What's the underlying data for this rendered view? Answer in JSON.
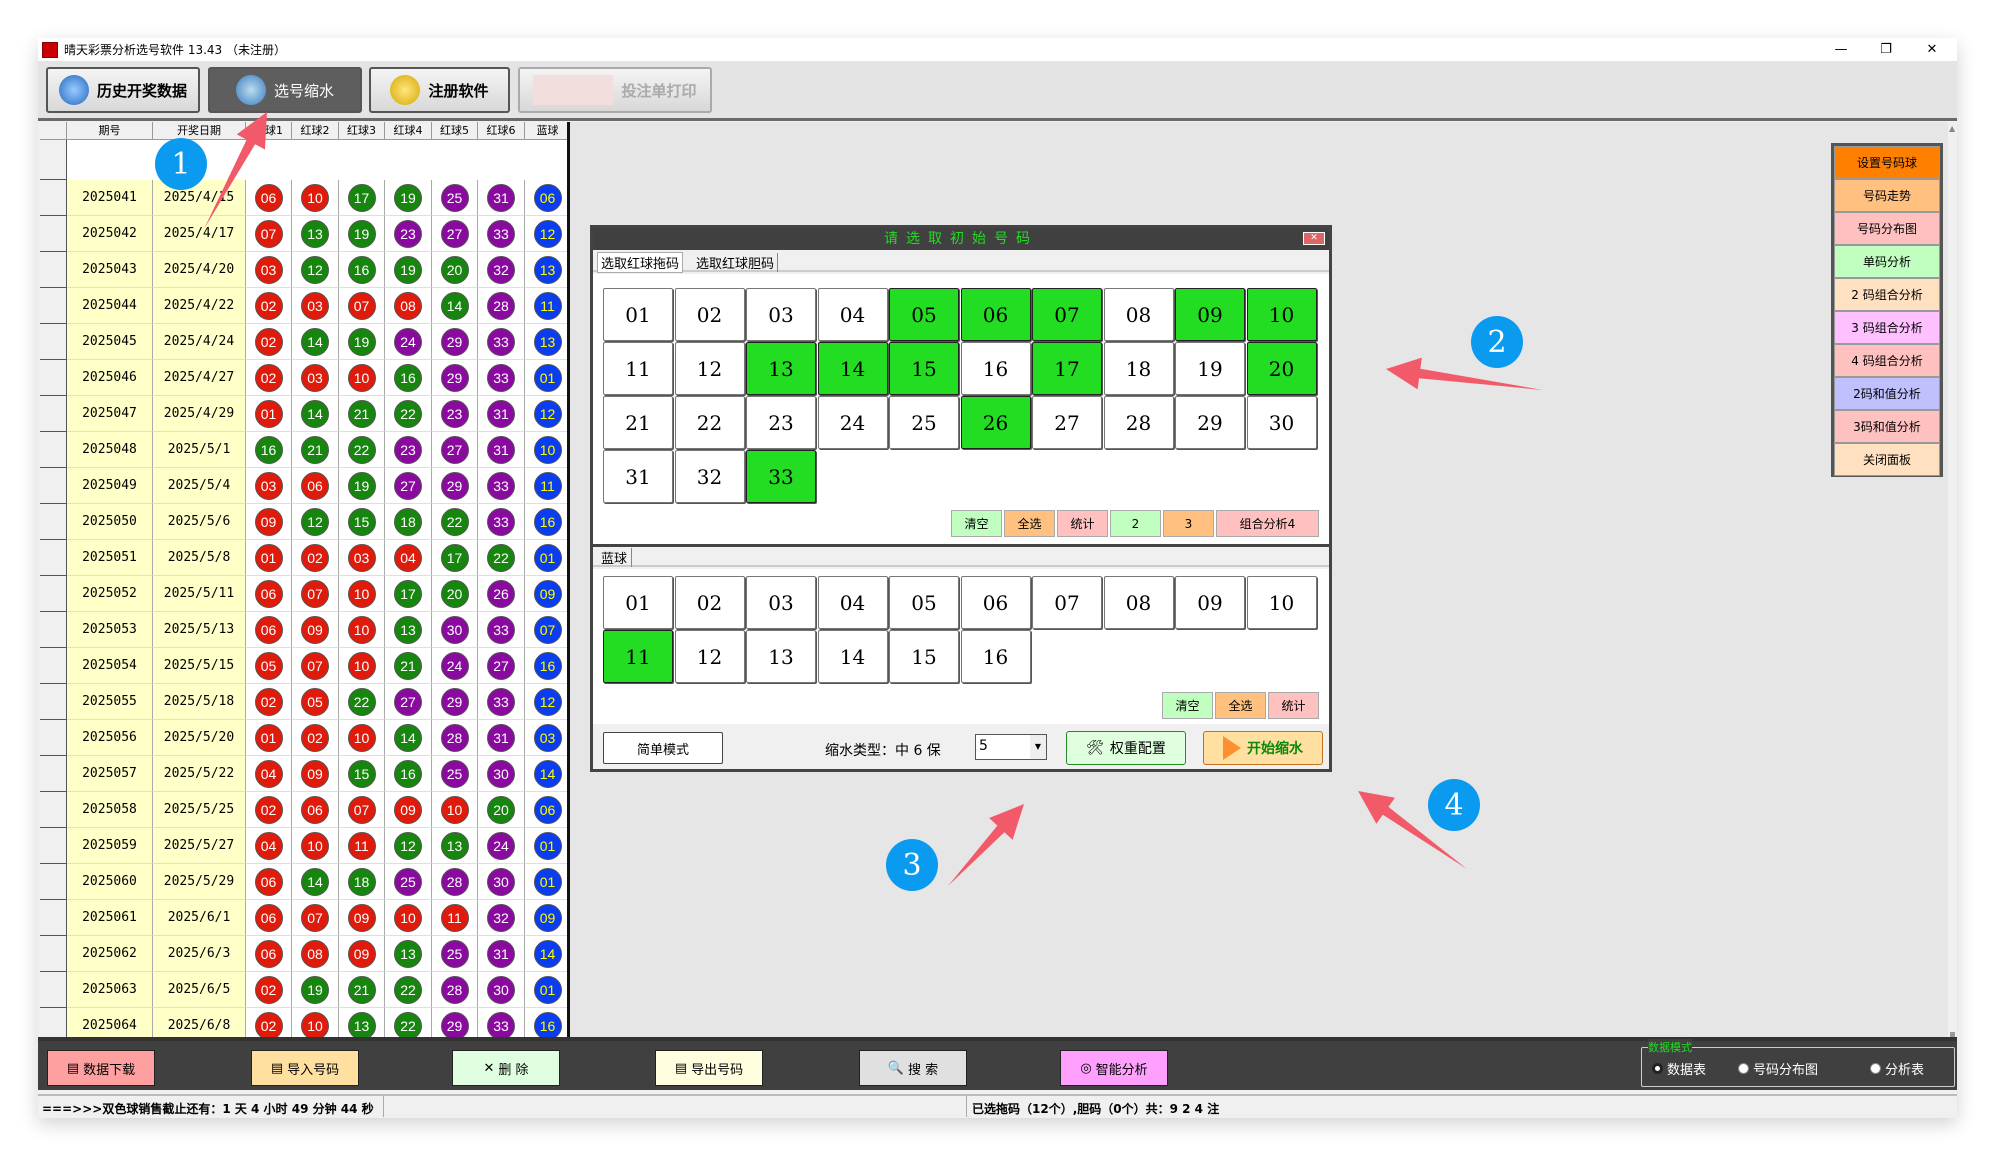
{
  "window": {
    "title": "晴天彩票分析选号软件 13.43 （未注册）",
    "controls": [
      "—",
      "❐",
      "✕"
    ]
  },
  "toolbar": [
    {
      "label": "历史开奖数据",
      "state": "normal",
      "icon": "globe-document-icon"
    },
    {
      "label": "选号缩水",
      "state": "active",
      "icon": "arrow-right-icon"
    },
    {
      "label": "注册软件",
      "state": "normal",
      "icon": "key-icon"
    },
    {
      "label": "投注单打印",
      "state": "disabled",
      "icon": "ticket-icon"
    }
  ],
  "table": {
    "headers": [
      "期号",
      "开奖日期",
      "红球1",
      "红球2",
      "红球3",
      "红球4",
      "红球5",
      "红球6",
      "蓝球"
    ],
    "ball_colors": {
      "red_1_11": "#e01b0b",
      "green_12_22": "#16860f",
      "purple_23_33": "#8a0aa0",
      "blue": "#0a3cf0",
      "blue_text": "#ffff00"
    },
    "rows": [
      [
        "2025041",
        "2025/4/15",
        "06",
        "10",
        "17",
        "19",
        "25",
        "31",
        "06"
      ],
      [
        "2025042",
        "2025/4/17",
        "07",
        "13",
        "19",
        "23",
        "27",
        "33",
        "12"
      ],
      [
        "2025043",
        "2025/4/20",
        "03",
        "12",
        "16",
        "19",
        "20",
        "32",
        "13"
      ],
      [
        "2025044",
        "2025/4/22",
        "02",
        "03",
        "07",
        "08",
        "14",
        "28",
        "11"
      ],
      [
        "2025045",
        "2025/4/24",
        "02",
        "14",
        "19",
        "24",
        "29",
        "33",
        "13"
      ],
      [
        "2025046",
        "2025/4/27",
        "02",
        "03",
        "10",
        "16",
        "29",
        "33",
        "01"
      ],
      [
        "2025047",
        "2025/4/29",
        "01",
        "14",
        "21",
        "22",
        "23",
        "31",
        "12"
      ],
      [
        "2025048",
        "2025/5/1",
        "16",
        "21",
        "22",
        "23",
        "27",
        "31",
        "10"
      ],
      [
        "2025049",
        "2025/5/4",
        "03",
        "06",
        "19",
        "27",
        "29",
        "33",
        "11"
      ],
      [
        "2025050",
        "2025/5/6",
        "09",
        "12",
        "15",
        "18",
        "22",
        "33",
        "16"
      ],
      [
        "2025051",
        "2025/5/8",
        "01",
        "02",
        "03",
        "04",
        "17",
        "22",
        "01"
      ],
      [
        "2025052",
        "2025/5/11",
        "06",
        "07",
        "10",
        "17",
        "20",
        "26",
        "09"
      ],
      [
        "2025053",
        "2025/5/13",
        "06",
        "09",
        "10",
        "13",
        "30",
        "33",
        "07"
      ],
      [
        "2025054",
        "2025/5/15",
        "05",
        "07",
        "10",
        "21",
        "24",
        "27",
        "16"
      ],
      [
        "2025055",
        "2025/5/18",
        "02",
        "05",
        "22",
        "27",
        "29",
        "33",
        "12"
      ],
      [
        "2025056",
        "2025/5/20",
        "01",
        "02",
        "10",
        "14",
        "28",
        "31",
        "03"
      ],
      [
        "2025057",
        "2025/5/22",
        "04",
        "09",
        "15",
        "16",
        "25",
        "30",
        "14"
      ],
      [
        "2025058",
        "2025/5/25",
        "02",
        "06",
        "07",
        "09",
        "10",
        "20",
        "06"
      ],
      [
        "2025059",
        "2025/5/27",
        "04",
        "10",
        "11",
        "12",
        "13",
        "24",
        "01"
      ],
      [
        "2025060",
        "2025/5/29",
        "06",
        "14",
        "18",
        "25",
        "28",
        "30",
        "01"
      ],
      [
        "2025061",
        "2025/6/1",
        "06",
        "07",
        "09",
        "10",
        "11",
        "32",
        "09"
      ],
      [
        "2025062",
        "2025/6/3",
        "06",
        "08",
        "09",
        "13",
        "25",
        "31",
        "14"
      ],
      [
        "2025063",
        "2025/6/5",
        "02",
        "19",
        "21",
        "22",
        "28",
        "30",
        "01"
      ],
      [
        "2025064",
        "2025/6/8",
        "02",
        "10",
        "13",
        "22",
        "29",
        "33",
        "16"
      ]
    ]
  },
  "right_panel": [
    {
      "label": "设置号码球",
      "color": "#ff8000"
    },
    {
      "label": "号码走势",
      "color": "#ffc080"
    },
    {
      "label": "号码分布图",
      "color": "#ffc0c0"
    },
    {
      "label": "单码分析",
      "color": "#c0ffc0"
    },
    {
      "label": "2 码组合分析",
      "color": "#ffe0c0"
    },
    {
      "label": "3 码组合分析",
      "color": "#ffc0ff"
    },
    {
      "label": "4 码组合分析",
      "color": "#ffc0c0"
    },
    {
      "label": "2码和值分析",
      "color": "#c0c0ff"
    },
    {
      "label": "3码和值分析",
      "color": "#ffc0c0"
    },
    {
      "label": "关闭面板",
      "color": "#ffe0c0"
    }
  ],
  "dialog": {
    "title": "请选取初始号码",
    "red_tabs": [
      "选取红球拖码",
      "选取红球胆码"
    ],
    "red_numbers": [
      "01",
      "02",
      "03",
      "04",
      "05",
      "06",
      "07",
      "08",
      "09",
      "10",
      "11",
      "12",
      "13",
      "14",
      "15",
      "16",
      "17",
      "18",
      "19",
      "20",
      "21",
      "22",
      "23",
      "24",
      "25",
      "26",
      "27",
      "28",
      "29",
      "30",
      "31",
      "32",
      "33"
    ],
    "red_selected": [
      "05",
      "06",
      "07",
      "09",
      "10",
      "13",
      "14",
      "15",
      "17",
      "20",
      "26",
      "33"
    ],
    "red_actions": [
      {
        "label": "清空",
        "color": "#c0ffc0"
      },
      {
        "label": "全选",
        "color": "#ffc080"
      },
      {
        "label": "统计",
        "color": "#ffc0c0"
      },
      {
        "label": "2",
        "color": "#c0ffc0"
      },
      {
        "label": "3",
        "color": "#ffc080"
      },
      {
        "label": "组合分析4",
        "color": "#ffc0c0"
      }
    ],
    "blue_tab": "蓝球",
    "blue_numbers": [
      "01",
      "02",
      "03",
      "04",
      "05",
      "06",
      "07",
      "08",
      "09",
      "10",
      "11",
      "12",
      "13",
      "14",
      "15",
      "16"
    ],
    "blue_selected": [
      "11"
    ],
    "blue_actions": [
      {
        "label": "清空",
        "color": "#c0ffc0"
      },
      {
        "label": "全选",
        "color": "#ffc080"
      },
      {
        "label": "统计",
        "color": "#ffc0c0"
      }
    ],
    "simple_mode": "简单模式",
    "shrink_type_label": "缩水类型：中 6 保",
    "shrink_value": "5",
    "weight_config": "权重配置",
    "start_shrink": "开始缩水",
    "selected_color": "#22dd22"
  },
  "bottom_buttons": [
    {
      "label": "数据下载",
      "color": "#ffa0a0"
    },
    {
      "label": "导入号码",
      "color": "#ffe0a0"
    },
    {
      "label": "删 除",
      "color": "#e0ffe0"
    },
    {
      "label": "导出号码",
      "color": "#ffffe0"
    },
    {
      "label": "搜 索",
      "color": "#e0e0e0"
    },
    {
      "label": "智能分析",
      "color": "#ff a0ff"
    }
  ],
  "data_mode": {
    "label": "数据模式",
    "options": [
      "数据表",
      "号码分布图",
      "分析表"
    ],
    "selected": "数据表"
  },
  "status": {
    "countdown": "===>>>双色球销售截止还有：1 天 4 小时 49 分钟 44 秒",
    "selection": "已选拖码（12个）,胆码（0个）共：9 2 4 注"
  },
  "annotations": [
    "1",
    "2",
    "3",
    "4"
  ],
  "annotation_color": "#f25a6a"
}
